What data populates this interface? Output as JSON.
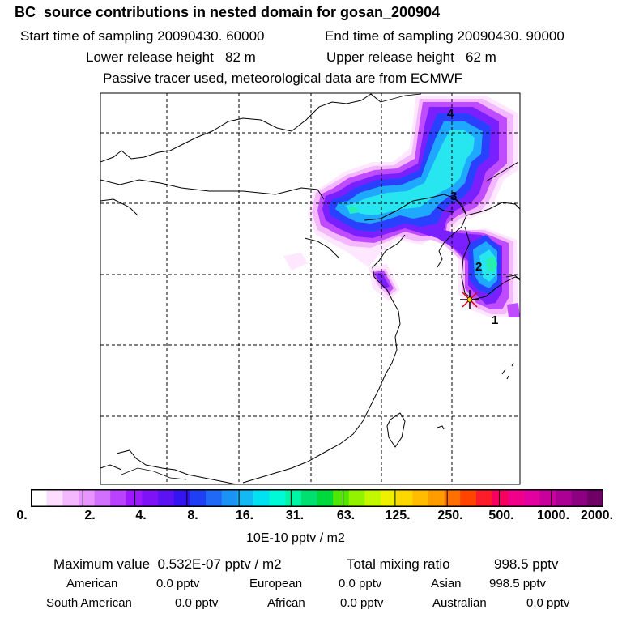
{
  "header": {
    "title": "BC  source contributions in nested domain for gosan_200904",
    "start_label": "Start time of sampling 20090430. 60000",
    "end_label": "End time of sampling 20090430. 90000",
    "lower_label": "Lower release height   82 m",
    "upper_label": "Upper release height   62 m",
    "tracer_label": "Passive tracer used, meteorological data are from ECMWF"
  },
  "map": {
    "region": "East Asia (China, Korea, Japan, Taiwan)",
    "receptor_marker": "star-icon",
    "trajectory_labels": [
      "1",
      "2",
      "3",
      "4"
    ],
    "plume_colors": [
      "#ffe8ff",
      "#f4b8ff",
      "#c04cff",
      "#7a20ff",
      "#2a40ff",
      "#1fa8ff",
      "#27e6f0",
      "#26f0b0"
    ]
  },
  "colorbar": {
    "ticks": [
      "0.",
      "2.",
      "4.",
      "8.",
      "16.",
      "31.",
      "63.",
      "125.",
      "250.",
      "500.",
      "1000.",
      "2000."
    ],
    "colors": [
      "#ffffff",
      "#fcdcff",
      "#f3b8ff",
      "#e995ff",
      "#d36fff",
      "#ba42ff",
      "#9e19ff",
      "#7f12f6",
      "#5c13f4",
      "#3415f1",
      "#1f3ff5",
      "#2068f6",
      "#1b93f5",
      "#12b9f2",
      "#00e2f1",
      "#00fad8",
      "#00f6a4",
      "#00e070",
      "#00d93c",
      "#50e800",
      "#92f200",
      "#c4f800",
      "#eef000",
      "#fdd800",
      "#ffbc00",
      "#ff9c00",
      "#ff7000",
      "#ff4400",
      "#fd1c2a",
      "#f8005f",
      "#f0008a",
      "#e200a0",
      "#c8009c",
      "#ac0094",
      "#8e0082",
      "#6f0066"
    ],
    "unit_label": "10E-10 pptv / m2"
  },
  "summary": {
    "max_label": "Maximum value  0.532E-07 pptv / m2",
    "total_label": "Total mixing ratio",
    "total_value": "998.5 pptv",
    "american_label": "American",
    "american_value": "0.0 pptv",
    "european_label": "European",
    "european_value": "0.0 pptv",
    "asian_label": "Asian",
    "asian_value": "998.5 pptv",
    "south_american_label": "South American",
    "south_american_value": "0.0 pptv",
    "african_label": "African",
    "african_value": "0.0 pptv",
    "australian_label": "Australian",
    "australian_value": "0.0 pptv"
  }
}
